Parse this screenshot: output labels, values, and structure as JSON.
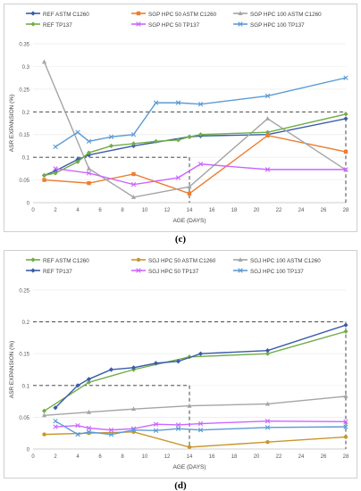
{
  "chart_data": [
    {
      "type": "line",
      "panel_label": "(c)",
      "xlabel": "AGE (DAYS)",
      "ylabel": "ASR EXPANSION (%)",
      "xlim": [
        0,
        28
      ],
      "ylim": [
        0,
        0.35
      ],
      "xticks": [
        0,
        2,
        4,
        6,
        8,
        10,
        12,
        14,
        16,
        18,
        20,
        22,
        24,
        26,
        28
      ],
      "yticks": [
        0,
        0.05,
        0.1,
        0.15,
        0.2,
        0.25,
        0.3,
        0.35
      ],
      "ytick_labels": [
        "0",
        "0.05",
        "0.1",
        "0.15",
        "0.2",
        "0.25",
        "0.3",
        "0.35"
      ],
      "legend_position": "top",
      "guides": [
        {
          "y": 0.2,
          "x_to": 28
        },
        {
          "y": 0.1,
          "x_to": 14
        }
      ],
      "series": [
        {
          "name": "REF ASTM C1260",
          "color": "#3a5ba8",
          "marker": "diamond",
          "x": [
            1,
            2,
            4,
            5,
            9,
            14,
            15,
            21,
            28
          ],
          "y": [
            0.06,
            0.07,
            0.095,
            0.105,
            0.125,
            0.145,
            0.147,
            0.15,
            0.185
          ]
        },
        {
          "name": "SGP HPC 50 ASTM C1260",
          "color": "#ed7d31",
          "marker": "square",
          "x": [
            1,
            5,
            9,
            14,
            21,
            28
          ],
          "y": [
            0.05,
            0.043,
            0.063,
            0.02,
            0.148,
            0.112
          ]
        },
        {
          "name": "SGP HPC 100 ASTM C1260",
          "color": "#a5a5a5",
          "marker": "triangle",
          "x": [
            1,
            5,
            9,
            14,
            21,
            28
          ],
          "y": [
            0.31,
            0.075,
            0.012,
            0.035,
            0.185,
            0.072
          ]
        },
        {
          "name": "REF TP137",
          "color": "#70ad47",
          "marker": "diamond",
          "x": [
            1,
            2,
            4,
            5,
            7,
            9,
            11,
            13,
            14,
            15,
            21,
            28
          ],
          "y": [
            0.06,
            0.065,
            0.09,
            0.11,
            0.125,
            0.13,
            0.135,
            0.138,
            0.145,
            0.15,
            0.155,
            0.195
          ]
        },
        {
          "name": "SGP HPC 50 TP137",
          "color": "#cc66ff",
          "marker": "x",
          "x": [
            2,
            5,
            9,
            13,
            15,
            21,
            28
          ],
          "y": [
            0.075,
            0.065,
            0.04,
            0.055,
            0.085,
            0.073,
            0.073
          ]
        },
        {
          "name": "SGP HPC 100 TP137",
          "color": "#5b9bd5",
          "marker": "x",
          "x": [
            2,
            4,
            5,
            7,
            9,
            11,
            13,
            15,
            21,
            28
          ],
          "y": [
            0.123,
            0.155,
            0.135,
            0.145,
            0.15,
            0.22,
            0.22,
            0.217,
            0.235,
            0.275
          ]
        }
      ]
    },
    {
      "type": "line",
      "panel_label": "(d)",
      "xlabel": "AGE (DAYS)",
      "ylabel": "ASR EXPANSION (%)",
      "xlim": [
        0,
        28
      ],
      "ylim": [
        0,
        0.25
      ],
      "xticks": [
        0,
        2,
        4,
        6,
        8,
        10,
        12,
        14,
        16,
        18,
        20,
        22,
        24,
        26,
        28
      ],
      "yticks": [
        0,
        0.05,
        0.1,
        0.15,
        0.2,
        0.25
      ],
      "ytick_labels": [
        "0",
        "0.05",
        "0.1",
        "0.15",
        "0.2",
        "0.25"
      ],
      "legend_position": "top",
      "guides": [
        {
          "y": 0.2,
          "x_to": 28
        },
        {
          "y": 0.1,
          "x_to": 14
        }
      ],
      "series": [
        {
          "name": "REF ASTM C1260",
          "color": "#70ad47",
          "marker": "diamond",
          "x": [
            1,
            5,
            9,
            14,
            21,
            28
          ],
          "y": [
            0.06,
            0.105,
            0.125,
            0.145,
            0.15,
            0.185
          ]
        },
        {
          "name": "SGJ HPC 50 ASTM C1260",
          "color": "#c8962e",
          "marker": "circle",
          "x": [
            1,
            5,
            9,
            14,
            21,
            28
          ],
          "y": [
            0.023,
            0.025,
            0.027,
            0.003,
            0.011,
            0.019
          ]
        },
        {
          "name": "SGJ HPC 100 ASTM C1260",
          "color": "#a5a5a5",
          "marker": "triangle",
          "x": [
            1,
            5,
            9,
            14,
            21,
            28
          ],
          "y": [
            0.053,
            0.058,
            0.063,
            0.068,
            0.071,
            0.083
          ]
        },
        {
          "name": "REF TP137",
          "color": "#3a5ba8",
          "marker": "diamond",
          "x": [
            2,
            4,
            5,
            7,
            9,
            11,
            13,
            15,
            21,
            28
          ],
          "y": [
            0.065,
            0.1,
            0.11,
            0.125,
            0.128,
            0.135,
            0.138,
            0.15,
            0.155,
            0.195
          ]
        },
        {
          "name": "SGJ HPC 50 TP137",
          "color": "#cc66ff",
          "marker": "x",
          "x": [
            2,
            4,
            5,
            7,
            9,
            11,
            13,
            15,
            21,
            28
          ],
          "y": [
            0.035,
            0.037,
            0.033,
            0.03,
            0.032,
            0.039,
            0.038,
            0.04,
            0.044,
            0.043
          ]
        },
        {
          "name": "SGJ HPC 100 TP137",
          "color": "#5b9bd5",
          "marker": "x",
          "x": [
            2,
            4,
            5,
            7,
            9,
            11,
            13,
            15,
            21,
            28
          ],
          "y": [
            0.044,
            0.023,
            0.027,
            0.023,
            0.03,
            0.029,
            0.032,
            0.03,
            0.034,
            0.035
          ]
        }
      ]
    }
  ]
}
